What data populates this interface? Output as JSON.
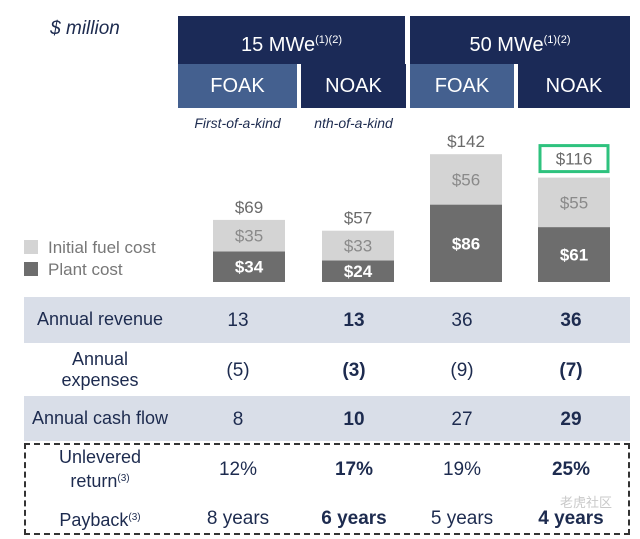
{
  "header": {
    "unit": "$ million",
    "group1": "15 MWe",
    "group1_sup": "(1)(2)",
    "group2": "50 MWe",
    "group2_sup": "(1)(2)",
    "cols": [
      "FOAK",
      "NOAK",
      "FOAK",
      "NOAK"
    ],
    "col1_note": "First-of-a-kind",
    "col2_note": "nth-of-a-kind"
  },
  "legend": {
    "fuel": "Initial fuel cost",
    "plant": "Plant cost",
    "fuel_color": "#d4d4d4",
    "plant_color": "#6d6d6d",
    "highlight_color": "#2ec27e"
  },
  "chart_data": {
    "type": "bar",
    "stacked": true,
    "categories": [
      "15 MWe FOAK",
      "15 MWe NOAK",
      "50 MWe FOAK",
      "50 MWe NOAK"
    ],
    "series": [
      {
        "name": "Plant cost",
        "values": [
          34,
          24,
          86,
          61
        ],
        "labels": [
          "$34",
          "$24",
          "$86",
          "$61"
        ]
      },
      {
        "name": "Initial fuel cost",
        "values": [
          35,
          33,
          56,
          55
        ],
        "labels": [
          "$35",
          "$33",
          "$56",
          "$55"
        ]
      }
    ],
    "totals": [
      69,
      57,
      142,
      116
    ],
    "total_labels": [
      "$69",
      "$57",
      "$142",
      "$116"
    ],
    "highlighted_total": 3
  },
  "table": {
    "rows": [
      {
        "label": "Annual revenue",
        "values": [
          "13",
          "13",
          "36",
          "36"
        ]
      },
      {
        "label": "Annual expenses",
        "label_line1": "Annual",
        "label_line2": "expenses",
        "values": [
          "(5)",
          "(3)",
          "(9)",
          "(7)"
        ]
      },
      {
        "label": "Annual cash flow",
        "values": [
          "8",
          "10",
          "27",
          "29"
        ]
      },
      {
        "label_line1": "Unlevered",
        "label_line2": "return",
        "label_sup": "(3)",
        "values": [
          "12%",
          "17%",
          "19%",
          "25%"
        ]
      },
      {
        "label": "Payback",
        "label_sup": "(3)",
        "values": [
          "8 years",
          "6 years",
          "5 years",
          "4 years"
        ]
      }
    ]
  },
  "watermark": "老虎社区"
}
